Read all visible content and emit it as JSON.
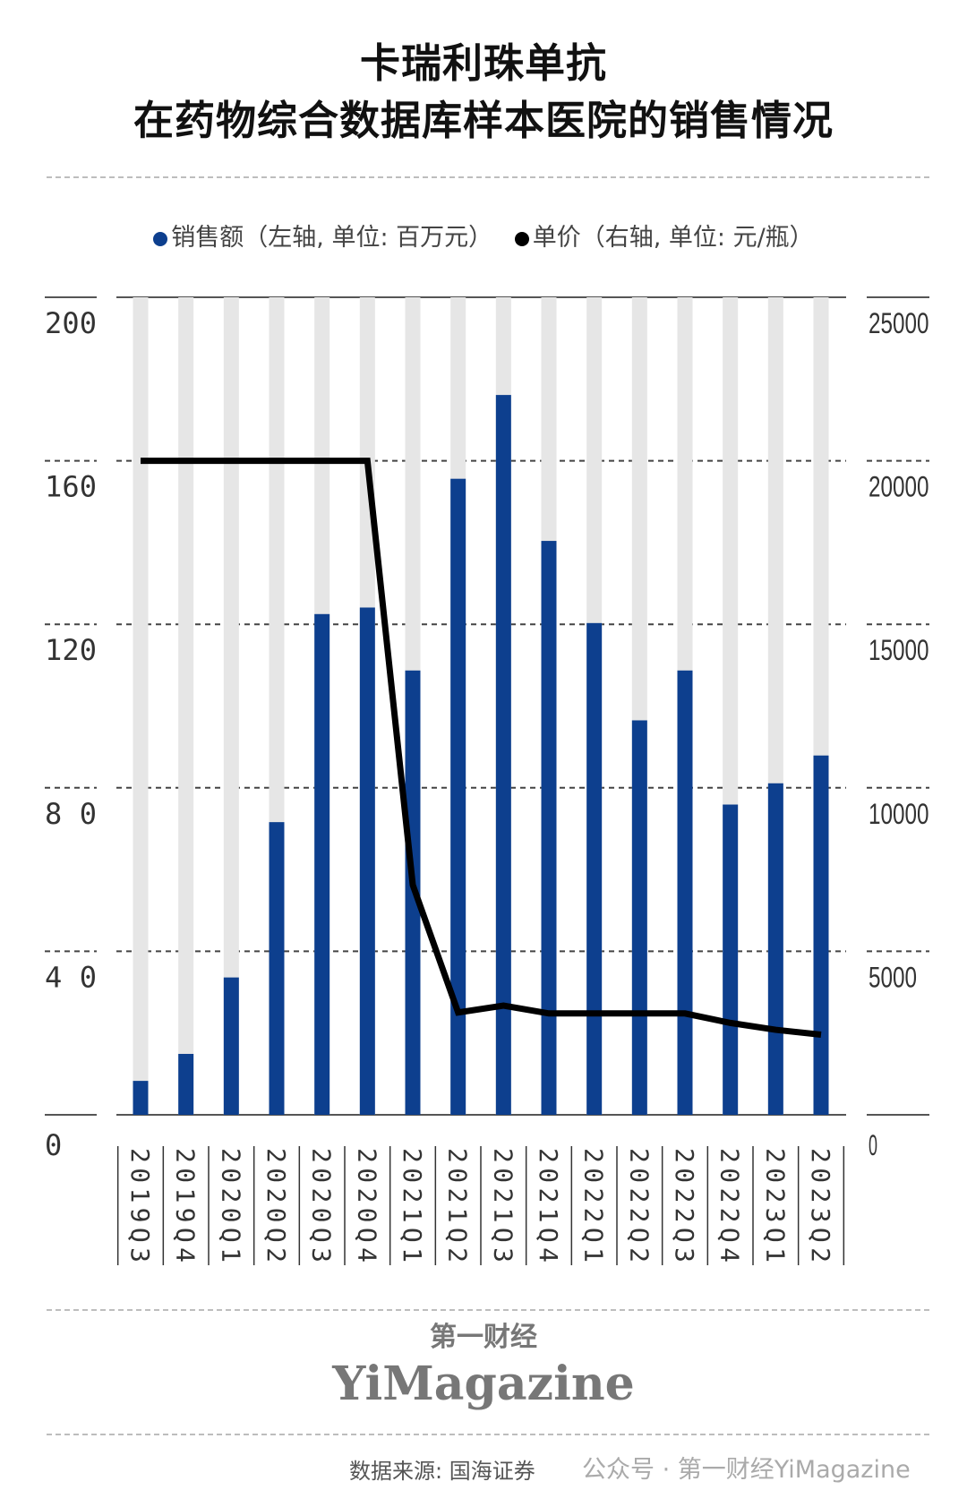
{
  "title_lines": [
    "卡瑞利珠单抗",
    "在药物综合数据库样本医院的销售情况"
  ],
  "chart_data": {
    "type": "bar+line",
    "title": "卡瑞利珠单抗 在药物综合数据库样本医院的销售情况",
    "categories": [
      "2019Q3",
      "2019Q4",
      "2020Q1",
      "2020Q2",
      "2020Q3",
      "2020Q4",
      "2021Q1",
      "2021Q2",
      "2021Q3",
      "2021Q4",
      "2022Q1",
      "2022Q2",
      "2022Q3",
      "2022Q4",
      "2023Q1",
      "2023Q2"
    ],
    "series": [
      {
        "name": "销售额（左轴，单位：百万元）",
        "type": "bar",
        "axis": "left",
        "color": "#0d3f8e",
        "values": [
          8.3,
          14.9,
          33.6,
          71.6,
          122.5,
          124.1,
          108.7,
          155.6,
          176.1,
          140.4,
          120.3,
          96.5,
          108.7,
          75.9,
          81.1,
          87.9
        ]
      },
      {
        "name": "单价（右轴，单位：元/瓶）",
        "type": "line",
        "axis": "right",
        "color": "#000000",
        "values": [
          20000,
          20000,
          20000,
          20000,
          20000,
          20000,
          7030,
          3130,
          3340,
          3100,
          3100,
          3100,
          3100,
          2810,
          2600,
          2450
        ]
      }
    ],
    "left_axis": {
      "range": [
        0,
        200
      ],
      "ticks": [
        "0",
        "4 0",
        "8 0",
        "1 2 0",
        "1 6 0",
        "2 0 0"
      ]
    },
    "right_axis": {
      "range": [
        0,
        25000
      ],
      "ticks": [
        "0",
        "5000",
        "10000",
        "15000",
        "20000",
        "25000"
      ]
    },
    "grid": true,
    "legend_position": "top",
    "bar_background_color": "#e6e6e6"
  },
  "legend": {
    "sales": "销售额（左轴, 单位: 百万元）",
    "price": "单价（右轴, 单位: 元/瓶）"
  },
  "logo": {
    "cn": "第一财经",
    "en": "YiMagazine"
  },
  "source": "数据来源: 国海证券",
  "watermark": "公众号 · 第一财经YiMagazine"
}
